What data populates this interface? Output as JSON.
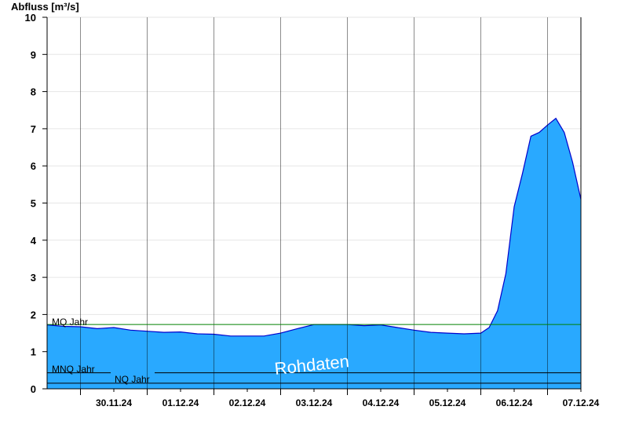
{
  "chart_data": {
    "type": "area",
    "title": "",
    "ylabel": "Abfluss [m³/s]",
    "xlabel": "",
    "ylim": [
      0,
      10
    ],
    "yticks": [
      "0",
      "1",
      "2",
      "3",
      "4",
      "5",
      "6",
      "7",
      "8",
      "9",
      "10"
    ],
    "x_start": "2024-11-29 12:00",
    "x_end": "2024-12-07 12:00",
    "xticks": [
      "30.11.24",
      "01.12.24",
      "02.12.24",
      "03.12.24",
      "04.12.24",
      "05.12.24",
      "06.12.24",
      "07.12.24"
    ],
    "grid": true,
    "fill_color": "#29a9ff",
    "line_color": "#0000cc",
    "watermark": "Rohdaten",
    "reference_lines": [
      {
        "name": "MQ Jahr",
        "value": 1.73,
        "color": "#008000"
      },
      {
        "name": "MNQ Jahr",
        "value": 0.43,
        "color": "#000000"
      },
      {
        "name": "NQ Jahr",
        "value": 0.15,
        "color": "#000000"
      }
    ],
    "series": [
      {
        "x": [
          "2024-11-29 12:00",
          "2024-11-29 18:00",
          "2024-11-30 00:00",
          "2024-11-30 06:00",
          "2024-11-30 12:00",
          "2024-11-30 18:00",
          "2024-12-01 00:00",
          "2024-12-01 06:00",
          "2024-12-01 12:00",
          "2024-12-01 18:00",
          "2024-12-02 00:00",
          "2024-12-02 06:00",
          "2024-12-02 12:00",
          "2024-12-02 18:00",
          "2024-12-03 00:00",
          "2024-12-03 06:00",
          "2024-12-03 12:00",
          "2024-12-03 18:00",
          "2024-12-04 00:00",
          "2024-12-04 06:00",
          "2024-12-04 12:00",
          "2024-12-04 18:00",
          "2024-12-05 00:00",
          "2024-12-05 06:00",
          "2024-12-05 12:00",
          "2024-12-05 18:00",
          "2024-12-06 00:00",
          "2024-12-06 03:00",
          "2024-12-06 06:00",
          "2024-12-06 09:00",
          "2024-12-06 12:00",
          "2024-12-06 15:00",
          "2024-12-06 18:00",
          "2024-12-06 21:00",
          "2024-12-07 00:00",
          "2024-12-07 03:00",
          "2024-12-07 06:00",
          "2024-12-07 09:00",
          "2024-12-07 12:00"
        ],
        "values": [
          1.72,
          1.68,
          1.67,
          1.62,
          1.65,
          1.58,
          1.55,
          1.52,
          1.53,
          1.48,
          1.47,
          1.42,
          1.42,
          1.42,
          1.5,
          1.62,
          1.73,
          1.73,
          1.73,
          1.7,
          1.72,
          1.65,
          1.58,
          1.52,
          1.5,
          1.48,
          1.5,
          1.65,
          2.1,
          3.1,
          4.9,
          5.8,
          6.8,
          6.9,
          7.1,
          7.28,
          6.9,
          6.1,
          5.1
        ]
      }
    ]
  }
}
